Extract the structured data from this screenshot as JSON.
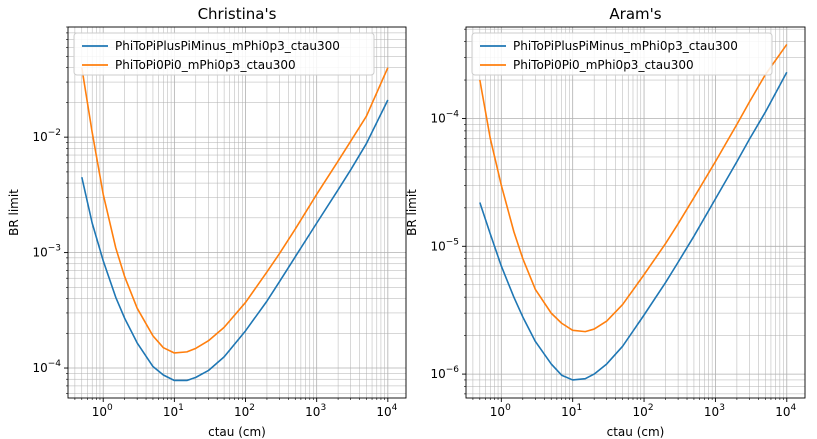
{
  "chart_data": [
    {
      "type": "line",
      "title": "Christina's",
      "xlabel": "ctau (cm)",
      "ylabel": "BR limit",
      "xscale": "log",
      "yscale": "log",
      "xlim": [
        0.32,
        18000
      ],
      "ylim": [
        5.5e-05,
        0.09
      ],
      "grid": "major and minor",
      "legend_position": "top-left",
      "x_ticks": [
        {
          "value": 1,
          "base": "10",
          "exp": "0"
        },
        {
          "value": 10,
          "base": "10",
          "exp": "1"
        },
        {
          "value": 100,
          "base": "10",
          "exp": "2"
        },
        {
          "value": 1000,
          "base": "10",
          "exp": "3"
        },
        {
          "value": 10000,
          "base": "10",
          "exp": "4"
        }
      ],
      "y_ticks": [
        {
          "value": 0.0001,
          "base": "10",
          "exp": "−4"
        },
        {
          "value": 0.001,
          "base": "10",
          "exp": "−3"
        },
        {
          "value": 0.01,
          "base": "10",
          "exp": "−2"
        }
      ],
      "series": [
        {
          "name": "PhiToPiPlusPiMinus_mPhi0p3_ctau300",
          "color": "#1f77b4",
          "x": [
            0.5,
            0.7,
            1,
            1.5,
            2,
            3,
            5,
            7,
            10,
            15,
            20,
            30,
            50,
            100,
            200,
            300,
            500,
            1000,
            2000,
            3000,
            5000,
            10000
          ],
          "y": [
            0.0045,
            0.0018,
            0.00085,
            0.00041,
            0.00027,
            0.000165,
            0.000103,
            8.7e-05,
            7.8e-05,
            7.8e-05,
            8.3e-05,
            9.5e-05,
            0.000125,
            0.00021,
            0.00038,
            0.00056,
            0.00092,
            0.0018,
            0.0035,
            0.0052,
            0.0088,
            0.021
          ]
        },
        {
          "name": "PhiToPi0Pi0_mPhi0p3_ctau300",
          "color": "#ff7f0e",
          "x": [
            0.5,
            0.7,
            1,
            1.5,
            2,
            3,
            5,
            7,
            10,
            15,
            20,
            30,
            50,
            100,
            200,
            300,
            500,
            1000,
            2000,
            3000,
            5000,
            10000
          ],
          "y": [
            0.04,
            0.011,
            0.0032,
            0.0011,
            0.00062,
            0.00033,
            0.00019,
            0.00015,
            0.000135,
            0.000138,
            0.000148,
            0.000172,
            0.000225,
            0.00037,
            0.00068,
            0.00098,
            0.0016,
            0.0032,
            0.0062,
            0.0092,
            0.0152,
            0.04
          ]
        }
      ]
    },
    {
      "type": "line",
      "title": "Aram's",
      "xlabel": "ctau (cm)",
      "ylabel": "BR limit",
      "xscale": "log",
      "yscale": "log",
      "xlim": [
        0.32,
        18000
      ],
      "ylim": [
        6.5e-07,
        0.00052
      ],
      "grid": "major and minor",
      "legend_position": "top-left",
      "x_ticks": [
        {
          "value": 1,
          "base": "10",
          "exp": "0"
        },
        {
          "value": 10,
          "base": "10",
          "exp": "1"
        },
        {
          "value": 100,
          "base": "10",
          "exp": "2"
        },
        {
          "value": 1000,
          "base": "10",
          "exp": "3"
        },
        {
          "value": 10000,
          "base": "10",
          "exp": "4"
        }
      ],
      "y_ticks": [
        {
          "value": 1e-06,
          "base": "10",
          "exp": "−6"
        },
        {
          "value": 1e-05,
          "base": "10",
          "exp": "−5"
        },
        {
          "value": 0.0001,
          "base": "10",
          "exp": "−4"
        }
      ],
      "series": [
        {
          "name": "PhiToPiPlusPiMinus_mPhi0p3_ctau300",
          "color": "#1f77b4",
          "x": [
            0.5,
            0.7,
            1,
            1.5,
            2,
            3,
            5,
            7,
            10,
            15,
            20,
            30,
            50,
            100,
            200,
            300,
            500,
            1000,
            2000,
            3000,
            5000,
            10000
          ],
          "y": [
            2.2e-05,
            1.25e-05,
            7e-06,
            4e-06,
            2.8e-06,
            1.8e-06,
            1.2e-06,
            9.8e-07,
            9e-07,
            9.2e-07,
            1e-06,
            1.2e-06,
            1.65e-06,
            2.9e-06,
            5.2e-06,
            7.5e-06,
            1.2e-05,
            2.35e-05,
            4.6e-05,
            6.9e-05,
            0.000112,
            0.00023
          ]
        },
        {
          "name": "PhiToPi0Pi0_mPhi0p3_ctau300",
          "color": "#ff7f0e",
          "x": [
            0.5,
            0.7,
            1,
            1.5,
            2,
            3,
            5,
            7,
            10,
            15,
            20,
            30,
            50,
            100,
            200,
            300,
            500,
            1000,
            2000,
            3000,
            5000,
            10000
          ],
          "y": [
            0.0002,
            7e-05,
            3e-05,
            1.3e-05,
            8e-06,
            4.6e-06,
            3e-06,
            2.5e-06,
            2.2e-06,
            2.15e-06,
            2.25e-06,
            2.6e-06,
            3.5e-06,
            6e-06,
            1.05e-05,
            1.5e-05,
            2.4e-05,
            4.6e-05,
            9e-05,
            0.000135,
            0.00022,
            0.00038
          ]
        }
      ]
    }
  ]
}
